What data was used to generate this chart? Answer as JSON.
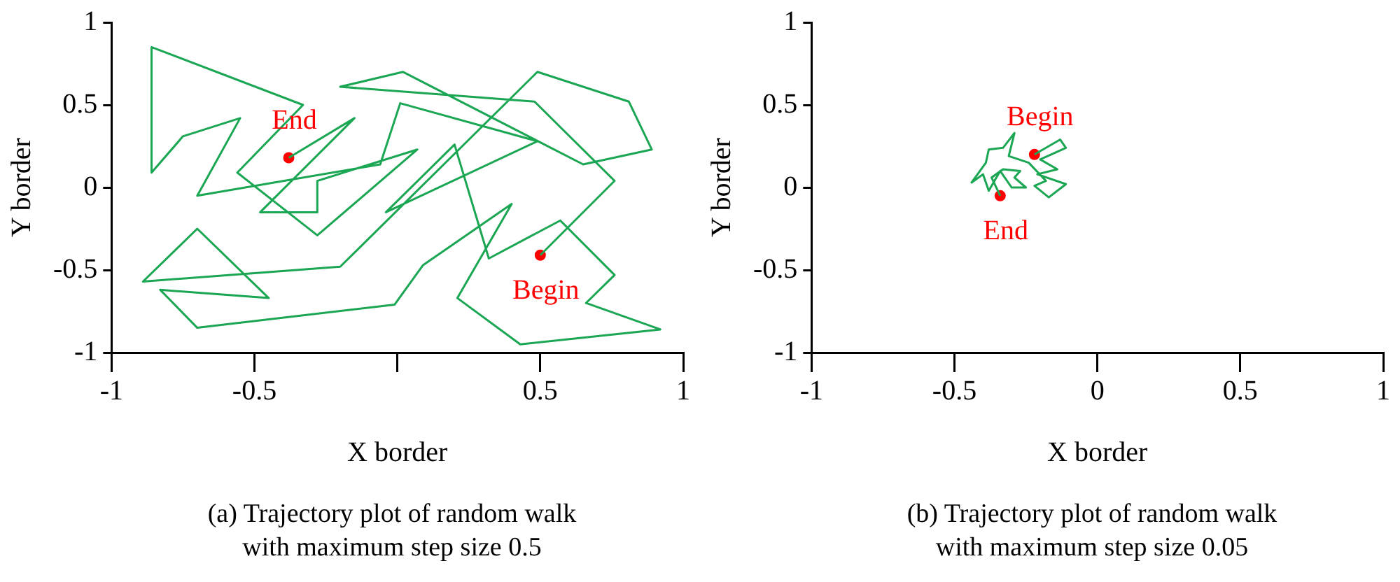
{
  "chart_data": [
    {
      "type": "line",
      "title": "(a) Trajectory plot of random walk with maximum step size 0.5",
      "xlabel": "X border",
      "ylabel": "Y border",
      "xlim": [
        -1,
        1
      ],
      "ylim": [
        -1,
        1
      ],
      "xticks": [
        -1,
        -0.5,
        {
          "value": 0,
          "label": null
        },
        0.5,
        1
      ],
      "yticks": [
        -1,
        -0.5,
        0,
        0.5,
        1
      ],
      "series": [
        {
          "color": "#1aa653",
          "x": [
            0.5,
            0.76,
            0.48,
            -0.2,
            0.02,
            0.65,
            0.89,
            0.81,
            0.49,
            -0.2,
            -0.89,
            -0.7,
            -0.45,
            -0.83,
            -0.7,
            -0.01,
            0.09,
            0.4,
            0.21,
            0.43,
            0.92,
            0.66,
            0.76,
            0.57,
            0.32,
            0.2,
            -0.04,
            0.49,
            0.01,
            -0.06,
            -0.7,
            -0.55,
            -0.75,
            -0.86,
            -0.86,
            -0.33,
            -0.56,
            -0.28,
            0.07,
            -0.28,
            -0.28,
            -0.48,
            -0.15,
            -0.38
          ],
          "values": [
            -0.41,
            0.04,
            0.52,
            0.61,
            0.7,
            0.14,
            0.23,
            0.52,
            0.7,
            -0.48,
            -0.57,
            -0.25,
            -0.67,
            -0.62,
            -0.85,
            -0.71,
            -0.47,
            -0.1,
            -0.67,
            -0.95,
            -0.86,
            -0.7,
            -0.53,
            -0.2,
            -0.43,
            0.26,
            -0.15,
            0.28,
            0.51,
            0.14,
            -0.05,
            0.42,
            0.31,
            0.09,
            0.85,
            0.5,
            0.09,
            -0.29,
            0.23,
            0.04,
            -0.15,
            -0.15,
            0.42,
            0.18
          ]
        },
        {
          "type": "scatter",
          "color": "#ff0000",
          "x": [
            0.5,
            -0.38
          ],
          "values": [
            -0.41,
            0.18
          ]
        }
      ],
      "annotations": [
        {
          "text": "End",
          "x": -0.38,
          "y": 0.18
        },
        {
          "text": "Begin",
          "x": 0.5,
          "y": -0.41
        }
      ]
    },
    {
      "type": "line",
      "title": "(b) Trajectory plot of random walk with maximum step size 0.05",
      "xlabel": "X border",
      "ylabel": "Y border",
      "xlim": [
        -1,
        1
      ],
      "ylim": [
        -1,
        1
      ],
      "xticks": [
        -1,
        -0.5,
        0,
        0.5,
        1
      ],
      "yticks": [
        -1,
        -0.5,
        0,
        0.5,
        1
      ],
      "series": [
        {
          "color": "#1aa653",
          "x": [
            -0.22,
            -0.13,
            -0.11,
            -0.2,
            -0.14,
            -0.21,
            -0.11,
            -0.17,
            -0.22,
            -0.18,
            -0.24,
            -0.31,
            -0.29,
            -0.33,
            -0.38,
            -0.39,
            -0.44,
            -0.4,
            -0.38,
            -0.34,
            -0.3,
            -0.25,
            -0.29,
            -0.27,
            -0.33,
            -0.37,
            -0.34
          ],
          "values": [
            0.2,
            0.29,
            0.24,
            0.17,
            0.11,
            0.08,
            0.02,
            -0.06,
            0.01,
            0.04,
            0.15,
            0.19,
            0.33,
            0.24,
            0.23,
            0.15,
            0.03,
            0.08,
            -0.02,
            0.1,
            0,
            0,
            0.06,
            0.1,
            0.11,
            0.06,
            -0.05
          ]
        },
        {
          "type": "scatter",
          "color": "#ff0000",
          "x": [
            -0.22,
            -0.34
          ],
          "values": [
            0.2,
            -0.05
          ]
        }
      ],
      "annotations": [
        {
          "text": "Begin",
          "x": -0.22,
          "y": 0.2
        },
        {
          "text": "End",
          "x": -0.34,
          "y": -0.05
        }
      ]
    }
  ]
}
